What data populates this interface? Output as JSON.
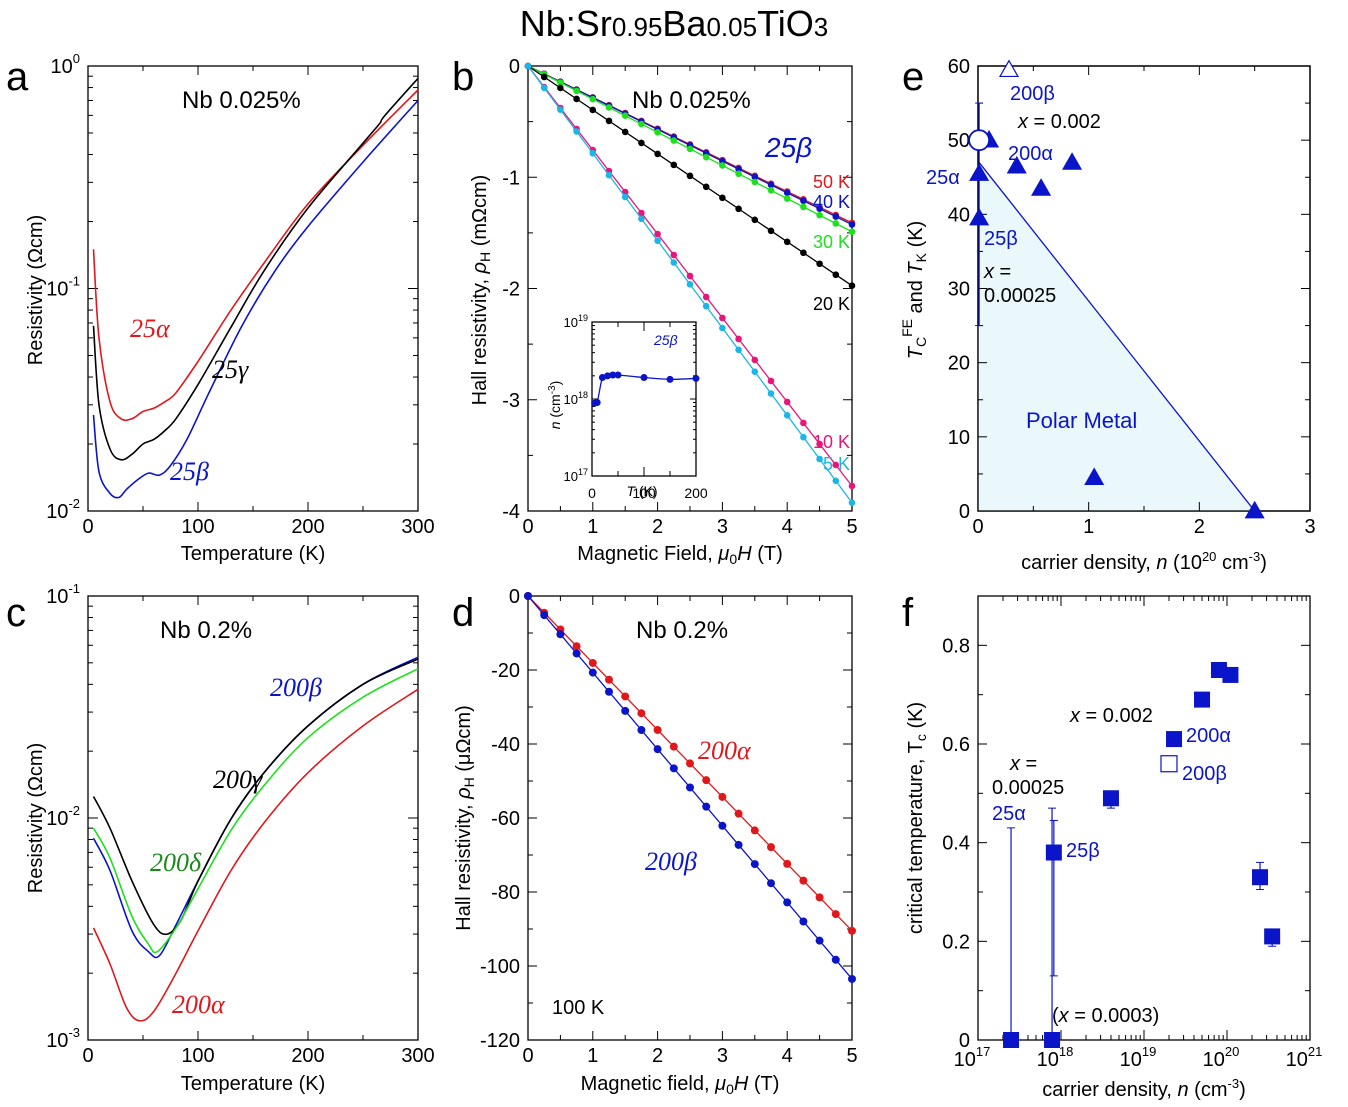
{
  "figure_title": "Nb:Sr0.95Ba0.05TiO3",
  "colors": {
    "red": "#e0181b",
    "black": "#000000",
    "blue": "#0a14c8",
    "green": "#1ee01e",
    "darkgreen": "#1a8a1a",
    "magenta": "#e8157a",
    "cyan": "#1ab6e8",
    "fill": "#eaf8fb"
  },
  "chart_data": [
    {
      "panel": "a",
      "type": "line",
      "annotation": "Nb 0.025%",
      "xlabel": "Temperature (K)",
      "ylabel": "Resistivity (Ωcm)",
      "xlim": [
        0,
        300
      ],
      "ylim": [
        0.01,
        1
      ],
      "yscale": "log",
      "xticks": [
        "0",
        "100",
        "200",
        "300"
      ],
      "series": [
        {
          "name": "25α",
          "color": "red",
          "x": [
            5,
            10,
            20,
            30,
            40,
            50,
            60,
            70,
            80,
            100,
            130,
            160,
            200,
            250,
            300
          ],
          "y": [
            0.15,
            0.06,
            0.031,
            0.026,
            0.026,
            0.028,
            0.029,
            0.031,
            0.034,
            0.047,
            0.08,
            0.13,
            0.24,
            0.44,
            0.78
          ]
        },
        {
          "name": "25γ",
          "color": "black",
          "x": [
            5,
            10,
            20,
            30,
            40,
            50,
            60,
            70,
            80,
            100,
            130,
            160,
            200,
            250,
            265,
            270,
            300
          ],
          "y": [
            0.068,
            0.03,
            0.019,
            0.017,
            0.018,
            0.02,
            0.021,
            0.023,
            0.026,
            0.037,
            0.067,
            0.12,
            0.23,
            0.45,
            0.55,
            0.6,
            0.88
          ]
        },
        {
          "name": "25β",
          "color": "blue",
          "x": [
            5,
            10,
            20,
            28,
            35,
            45,
            55,
            65,
            75,
            90,
            110,
            140,
            170,
            200,
            250,
            300
          ],
          "y": [
            0.027,
            0.015,
            0.012,
            0.0115,
            0.0125,
            0.0138,
            0.0148,
            0.0145,
            0.016,
            0.021,
            0.034,
            0.068,
            0.12,
            0.19,
            0.37,
            0.7
          ]
        }
      ]
    },
    {
      "panel": "b",
      "type": "line",
      "annotation": "Nb 0.025%",
      "series_label": "25β",
      "xlabel": "Magnetic Field, μ0H (T)",
      "ylabel": "Hall resistivity, ρH (mΩcm)",
      "xlim": [
        0,
        5
      ],
      "ylim": [
        -4,
        0
      ],
      "xticks": [
        "0",
        "1",
        "2",
        "3",
        "4",
        "5"
      ],
      "yticks": [
        "0",
        "-1",
        "-2",
        "-3",
        "-4"
      ],
      "series": [
        {
          "name": "50 K",
          "color": "red",
          "slope": -0.282
        },
        {
          "name": "40 K",
          "color": "blue",
          "slope": -0.285
        },
        {
          "name": "30 K",
          "color": "green",
          "slope": -0.298
        },
        {
          "name": "20 K",
          "color": "black",
          "slope": -0.395
        },
        {
          "name": "10 K",
          "color": "magenta",
          "slope": -0.755
        },
        {
          "name": "5 K",
          "color": "cyan",
          "slope": -0.785
        }
      ],
      "inset": {
        "label": "25β",
        "xlabel": "T (K)",
        "ylabel": "n (cm⁻³)",
        "xlim": [
          0,
          200
        ],
        "ylim": [
          1e+17,
          1e+19
        ],
        "yscale": "log",
        "x": [
          5,
          10,
          20,
          30,
          40,
          50,
          100,
          150,
          200
        ],
        "y": [
          8.8e+17,
          9e+17,
          1.9e+18,
          2e+18,
          2.05e+18,
          2.05e+18,
          1.9e+18,
          1.8e+18,
          1.85e+18
        ]
      }
    },
    {
      "panel": "c",
      "type": "line",
      "annotation": "Nb 0.2%",
      "xlabel": "Temperature (K)",
      "ylabel": "Resistivity (Ωcm)",
      "xlim": [
        0,
        300
      ],
      "ylim": [
        0.001,
        0.1
      ],
      "yscale": "log",
      "xticks": [
        "0",
        "100",
        "200",
        "300"
      ],
      "series": [
        {
          "name": "200α",
          "color": "red",
          "x": [
            5,
            20,
            35,
            47,
            60,
            80,
            100,
            130,
            160,
            200,
            250,
            300
          ],
          "y": [
            0.0032,
            0.0022,
            0.0014,
            0.00122,
            0.00135,
            0.002,
            0.0031,
            0.0058,
            0.0095,
            0.016,
            0.026,
            0.038
          ]
        },
        {
          "name": "200β",
          "color": "blue",
          "x": [
            5,
            20,
            40,
            55,
            65,
            80,
            100,
            130,
            160,
            200,
            250,
            300
          ],
          "y": [
            0.0081,
            0.0058,
            0.0031,
            0.0025,
            0.0024,
            0.0033,
            0.0052,
            0.0099,
            0.016,
            0.026,
            0.04,
            0.053
          ]
        },
        {
          "name": "200γ",
          "color": "black",
          "x": [
            5,
            20,
            40,
            60,
            72,
            85,
            100,
            130,
            160,
            200,
            250,
            300
          ],
          "y": [
            0.0125,
            0.009,
            0.0052,
            0.0033,
            0.003,
            0.0035,
            0.0052,
            0.0099,
            0.016,
            0.026,
            0.04,
            0.052
          ]
        },
        {
          "name": "200δ",
          "color": "green",
          "x": [
            5,
            20,
            40,
            55,
            63,
            80,
            100,
            130,
            160,
            200,
            250,
            300
          ],
          "y": [
            0.009,
            0.0066,
            0.0036,
            0.0027,
            0.0025,
            0.0032,
            0.0048,
            0.0088,
            0.014,
            0.023,
            0.035,
            0.047
          ]
        }
      ],
      "label_colors": {
        "200δ": "darkgreen"
      }
    },
    {
      "panel": "d",
      "type": "line",
      "annotation": "Nb 0.2%",
      "note": "100 K",
      "xlabel": "Magnetic field, μ0H (T)",
      "ylabel": "Hall resistivity, ρH (μΩcm)",
      "xlim": [
        0,
        5
      ],
      "ylim": [
        -120,
        0
      ],
      "xticks": [
        "0",
        "1",
        "2",
        "3",
        "4",
        "5"
      ],
      "yticks": [
        "0",
        "-20",
        "-40",
        "-60",
        "-80",
        "-100",
        "-120"
      ],
      "series": [
        {
          "name": "200α",
          "color": "red",
          "slope": -18.1
        },
        {
          "name": "200β",
          "color": "blue",
          "slope": -20.7
        }
      ]
    },
    {
      "panel": "e",
      "type": "scatter",
      "xlabel": "carrier density, n (10²⁰ cm⁻³)",
      "ylabel": "TC^FE and TK (K)",
      "xlim": [
        0,
        3
      ],
      "ylim": [
        0,
        60
      ],
      "xticks": [
        "0",
        "1",
        "2",
        "3"
      ],
      "yticks": [
        "0",
        "10",
        "20",
        "30",
        "40",
        "50",
        "60"
      ],
      "region_label": "Polar Metal",
      "filled_triangles": [
        [
          0.1,
          50
        ],
        [
          0.35,
          46.5
        ],
        [
          0.57,
          43.5
        ],
        [
          0.85,
          47
        ],
        [
          0.01,
          45.5
        ],
        [
          0.01,
          39.5
        ],
        [
          1.05,
          4.5
        ],
        [
          2.5,
          0
        ]
      ],
      "open_triangles": [
        [
          0.28,
          59.5
        ]
      ],
      "open_circles": [
        [
          0.01,
          50
        ]
      ],
      "boundary": [
        [
          0.01,
          47
        ],
        [
          2.5,
          0
        ]
      ],
      "labels": [
        "200β",
        "x = 0.002",
        "200α",
        "25α",
        "25β",
        "x =",
        "0.00025"
      ]
    },
    {
      "panel": "f",
      "type": "scatter",
      "xlabel": "carrier density, n (cm⁻³)",
      "ylabel": "critical temperature, Tc (K)",
      "xlim": [
        1e+17,
        1e+21
      ],
      "xscale": "log",
      "ylim": [
        0,
        0.9
      ],
      "yticks": [
        "0",
        "0.2",
        "0.4",
        "0.6",
        "0.8"
      ],
      "filled_squares": [
        {
          "x": 2.5e+17,
          "y": 0.0,
          "err": [
            0,
            0.43
          ]
        },
        {
          "x": 7.8e+17,
          "y": 0.0,
          "err": [
            0,
            0.47
          ]
        },
        {
          "x": 8.2e+17,
          "y": 0.38,
          "err": [
            0.13,
            0.445
          ]
        },
        {
          "x": 4e+18,
          "y": 0.49,
          "err": [
            0.47,
            0.5
          ]
        },
        {
          "x": 2.3e+19,
          "y": 0.61,
          "err": null
        },
        {
          "x": 5e+19,
          "y": 0.69,
          "err": null
        },
        {
          "x": 8e+19,
          "y": 0.75,
          "err": null
        },
        {
          "x": 1.1e+20,
          "y": 0.74,
          "err": null
        },
        {
          "x": 2.5e+20,
          "y": 0.33,
          "err": [
            0.305,
            0.36
          ]
        },
        {
          "x": 3.5e+20,
          "y": 0.21,
          "err": [
            0.19,
            0.22
          ]
        }
      ],
      "open_squares": [
        {
          "x": 2e+19,
          "y": 0.56
        }
      ],
      "labels": [
        "x = 0.002",
        "200α",
        "200β",
        "x =",
        "0.00025",
        "25α",
        "25β",
        "(x = 0.0003)"
      ]
    }
  ],
  "panel_labels": {
    "a": "a",
    "b": "b",
    "c": "c",
    "d": "d",
    "e": "e",
    "f": "f"
  },
  "text": {
    "a": {
      "ann": "Nb 0.025%",
      "xlabel": "Temperature (K)",
      "ylabel": "Resistivity (Ωcm)",
      "s1": "25α",
      "s2": "25γ",
      "s3": "25β"
    },
    "b": {
      "ann": "Nb 0.025%",
      "big": "25β",
      "xlabel_pre": "Magnetic Field, ",
      "ylabel_pre": "Hall resistivity, ",
      "ylabel_post": " (mΩcm)",
      "inset_lab": "25β",
      "inset_x": "T (K)",
      "inset_y": "n (cm-3)"
    },
    "c": {
      "ann": "Nb 0.2%",
      "xlabel": "Temperature (K)",
      "ylabel": "Resistivity (Ωcm)",
      "s1": "200β",
      "s2": "200γ",
      "s3": "200δ",
      "s4": "200α"
    },
    "d": {
      "ann": "Nb 0.2%",
      "note": "100 K",
      "xlabel_pre": "Magnetic field, ",
      "ylabel_pre": "Hall resistivity, ",
      "ylabel_post": " (μΩcm)",
      "s1": "200α",
      "s2": "200β"
    },
    "e": {
      "region": "Polar Metal",
      "l1": "200β",
      "l2": "x = 0.002",
      "l3": "200α",
      "l4": "25α",
      "l5": "25β",
      "l6": "x =",
      "l7": "0.00025",
      "xlabel": "carrier density, n (10",
      "xlabel_exp": "20",
      "xlabel_post": " cm",
      "xlabel_exp2": "-3",
      "xlabel_end": ")"
    },
    "f": {
      "l1": "x = 0.002",
      "l2": "200α",
      "l3": "200β",
      "l4": "x =",
      "l5": "0.00025",
      "l6": "25α",
      "l7": "25β",
      "l8": "(x = 0.0003)",
      "xlabel": "carrier density, n (cm",
      "xlabel_exp": "-3",
      "xlabel_end": ")",
      "ylabel": "critical temperature, T"
    }
  }
}
